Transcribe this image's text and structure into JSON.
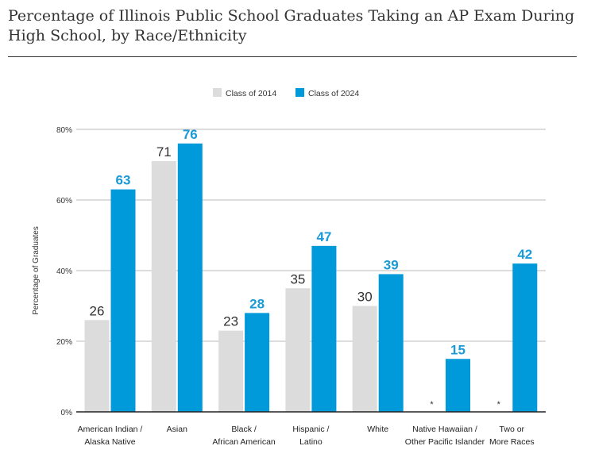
{
  "chart_data": {
    "type": "bar",
    "title": "Percentage of Illinois Public School Graduates Taking an AP Exam During High School, by Race/Ethnicity",
    "ylabel": "Percentage of Graduates",
    "xlabel": "",
    "ylim": [
      0,
      80
    ],
    "yticks": [
      0,
      20,
      40,
      60,
      80
    ],
    "ytick_labels": [
      "0%",
      "20%",
      "40%",
      "60%",
      "80%"
    ],
    "grid": true,
    "legend_placement": "top-center",
    "categories": [
      [
        "American Indian /",
        "Alaska Native"
      ],
      [
        "Asian"
      ],
      [
        "Black /",
        "African American"
      ],
      [
        "Hispanic /",
        "Latino"
      ],
      [
        "White"
      ],
      [
        "Native Hawaiian /",
        "Other Pacific Islander"
      ],
      [
        "Two or",
        "More Races"
      ]
    ],
    "series": [
      {
        "name": "Class of 2014",
        "color": "#dcdcdc",
        "label_color": "#333333",
        "values": [
          26,
          71,
          23,
          35,
          30,
          null,
          null
        ],
        "missing_label": "*"
      },
      {
        "name": "Class of 2024",
        "color": "#009ada",
        "label_color": "#1a9ad6",
        "values": [
          63,
          76,
          28,
          47,
          39,
          15,
          42
        ]
      }
    ]
  }
}
